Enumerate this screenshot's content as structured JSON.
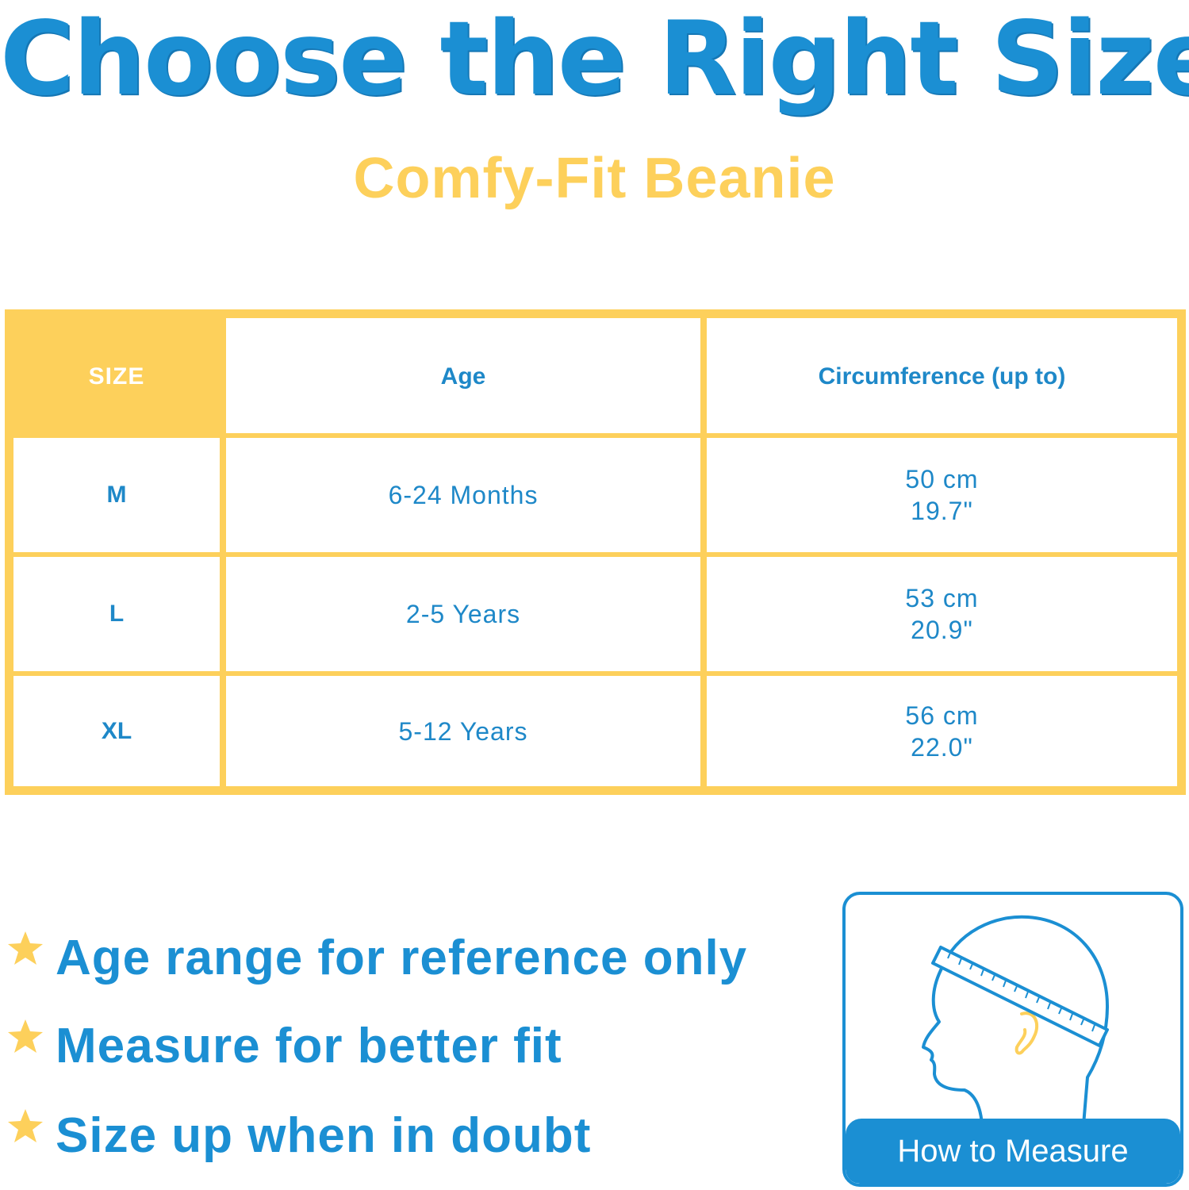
{
  "header": {
    "title": "Choose the Right Size",
    "subtitle": "Comfy-Fit Beanie"
  },
  "table": {
    "headers": [
      "SIZE",
      "Age",
      "Circumference (up to)"
    ],
    "rows": [
      {
        "size": "M",
        "age": "6-24 Months",
        "cm": "50 cm",
        "inch": "19.7\""
      },
      {
        "size": "L",
        "age": "2-5 Years",
        "cm": "53 cm",
        "inch": "20.9\""
      },
      {
        "size": "XL",
        "age": "5-12 Years",
        "cm": "56 cm",
        "inch": "22.0\""
      }
    ]
  },
  "tips": [
    {
      "icon": "star-icon",
      "text": "Age range for reference only"
    },
    {
      "icon": "star-icon",
      "text": "Measure for better fit"
    },
    {
      "icon": "star-icon",
      "text": "Size up when in doubt"
    }
  ],
  "measure_card": {
    "icon": "head-measuring-tape-icon",
    "label": "How to Measure"
  },
  "colors": {
    "blue": "#1b8fd3",
    "yellow": "#fdd05b",
    "white": "#ffffff"
  }
}
